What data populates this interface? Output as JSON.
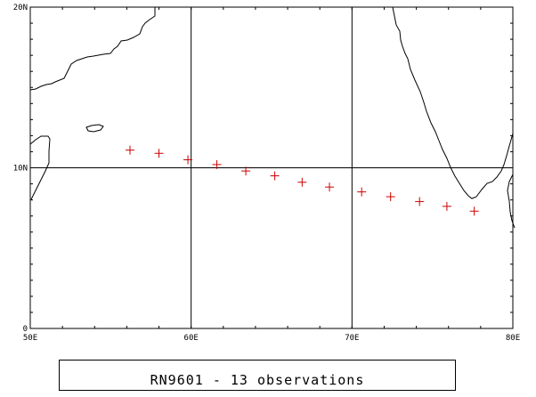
{
  "map": {
    "lon_range": [
      50,
      80
    ],
    "lat_range": [
      0,
      20
    ],
    "gridlines_lon": [
      60,
      70
    ],
    "gridlines_lat": [
      10
    ],
    "x_tick_labels": [
      {
        "lon": 50,
        "label": "50E"
      },
      {
        "lon": 60,
        "label": "60E"
      },
      {
        "lon": 70,
        "label": "70E"
      },
      {
        "lon": 80,
        "label": "80E"
      }
    ],
    "y_tick_labels": [
      {
        "lat": 0,
        "label": "0"
      },
      {
        "lat": 10,
        "label": "10N"
      },
      {
        "lat": 20,
        "label": "20N"
      }
    ],
    "colors": {
      "frame": "#000000",
      "coastline": "#000000",
      "gridline": "#000000",
      "marker": "#cc0000"
    },
    "marker_icon": "plus-marker-icon"
  },
  "chart_data": {
    "type": "scatter",
    "series": [
      {
        "x": [
          56.2,
          58.0,
          59.8,
          61.6,
          63.4,
          65.2,
          66.9,
          68.6,
          70.6,
          72.4,
          74.2,
          75.9,
          77.6
        ],
        "y": [
          11.1,
          10.9,
          10.5,
          10.2,
          9.8,
          9.5,
          9.1,
          8.8,
          8.5,
          8.2,
          7.9,
          7.6,
          7.3
        ]
      }
    ],
    "xlim": [
      50,
      80
    ],
    "ylim": [
      0,
      20
    ],
    "grid": true
  },
  "caption": {
    "text": "RN9601 - 13 observations"
  }
}
